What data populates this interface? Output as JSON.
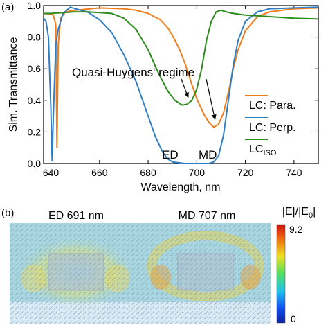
{
  "panel_labels": {
    "a": "(a)",
    "b": "(b)"
  },
  "chart_data": {
    "type": "line",
    "xlabel": "Wavelength, nm",
    "ylabel": "Sim. Transmittance",
    "xlim": [
      637,
      750
    ],
    "ylim": [
      0,
      1.0
    ],
    "xticks": [
      640,
      660,
      680,
      700,
      720,
      740
    ],
    "yticks": [
      0.0,
      0.2,
      0.4,
      0.6,
      0.8,
      1.0
    ],
    "grid": false,
    "legend_placement": "right",
    "series": [
      {
        "name": "LC: Para.",
        "color": "#f07c1c",
        "x": [
          637,
          640,
          641,
          642,
          642.5,
          643,
          644,
          646,
          650,
          660,
          670,
          675,
          680,
          685,
          688,
          690,
          693,
          695,
          698,
          700,
          703,
          705,
          707,
          709,
          711,
          713,
          715,
          717,
          720,
          725,
          730,
          740,
          750
        ],
        "y": [
          0.95,
          0.945,
          0.94,
          0.88,
          0.1,
          0.75,
          0.92,
          0.96,
          0.97,
          0.985,
          0.98,
          0.97,
          0.95,
          0.91,
          0.86,
          0.81,
          0.72,
          0.64,
          0.5,
          0.41,
          0.31,
          0.26,
          0.23,
          0.25,
          0.32,
          0.45,
          0.6,
          0.72,
          0.84,
          0.93,
          0.96,
          0.98,
          0.985
        ]
      },
      {
        "name": "LC: Perp.",
        "color": "#2f7ec4",
        "x": [
          637,
          638,
          639,
          640,
          640.5,
          641,
          642,
          643,
          645,
          648,
          650,
          655,
          660,
          665,
          670,
          675,
          680,
          683,
          686,
          688,
          690,
          695,
          700,
          705,
          707,
          709,
          711,
          713,
          715,
          717,
          720,
          725,
          730,
          740,
          750
        ],
        "y": [
          0.92,
          0.9,
          0.8,
          0.35,
          0.02,
          0.3,
          0.75,
          0.85,
          0.95,
          0.99,
          0.98,
          0.96,
          0.91,
          0.83,
          0.69,
          0.52,
          0.3,
          0.17,
          0.07,
          0.03,
          0.01,
          0.0,
          0.0,
          0.0,
          0.01,
          0.05,
          0.18,
          0.4,
          0.62,
          0.78,
          0.9,
          0.96,
          0.98,
          0.985,
          0.99
        ]
      },
      {
        "name": "LC",
        "name_sub": "ISO",
        "color": "#2e8b1f",
        "x": [
          637,
          640,
          645,
          650,
          655,
          660,
          665,
          670,
          675,
          680,
          684,
          688,
          691,
          694,
          696,
          698,
          700,
          702,
          704,
          706,
          708,
          710,
          712,
          715,
          720,
          730,
          740,
          750
        ],
        "y": [
          0.95,
          0.95,
          0.955,
          0.96,
          0.96,
          0.955,
          0.95,
          0.92,
          0.85,
          0.72,
          0.58,
          0.46,
          0.4,
          0.37,
          0.375,
          0.4,
          0.47,
          0.6,
          0.78,
          0.9,
          0.96,
          0.97,
          0.96,
          0.95,
          0.94,
          0.93,
          0.92,
          0.915
        ]
      }
    ],
    "annotations": [
      {
        "text": "Quasi-Huygens' regime",
        "arrows_to": [
          [
            696,
            0.37
          ],
          [
            707,
            0.23
          ]
        ]
      },
      {
        "text": "ED",
        "x": 691,
        "y": 0.03
      },
      {
        "text": "MD",
        "x": 707,
        "y": 0.03
      }
    ]
  },
  "field_maps": [
    {
      "title": "ED 691 nm"
    },
    {
      "title": "MD 707 nm"
    }
  ],
  "colorbar": {
    "label": "|E|/|E",
    "label_sub": "0",
    "label_end": "|",
    "max": "9.2",
    "min": "0"
  }
}
